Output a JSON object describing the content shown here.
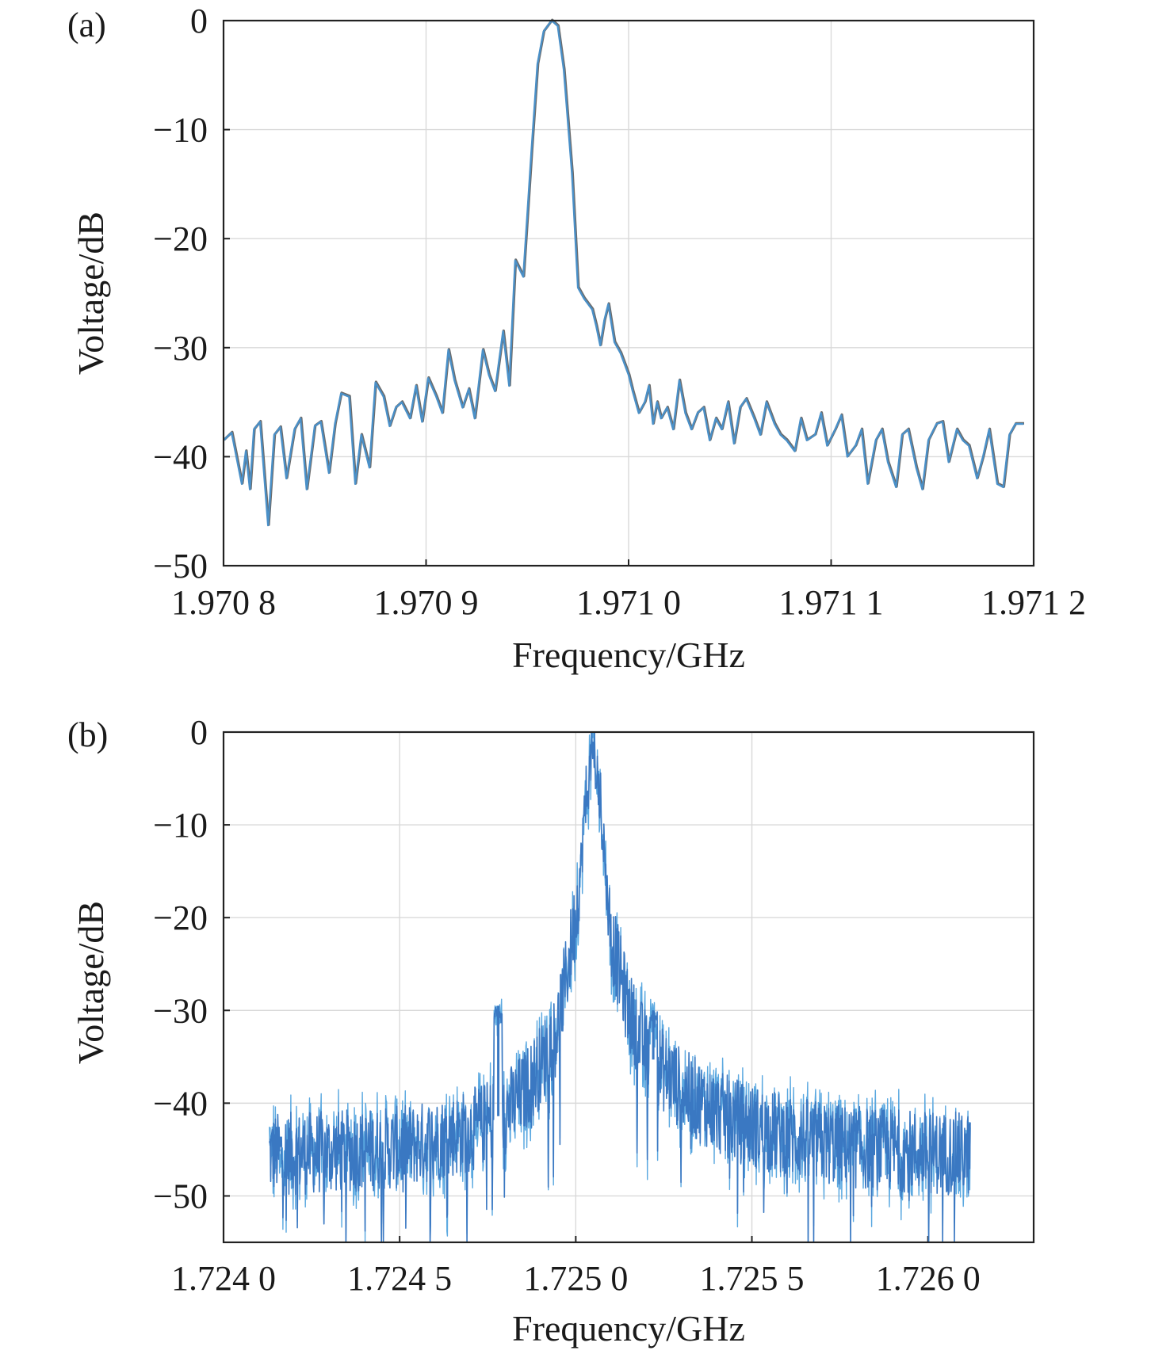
{
  "chart_data": [
    {
      "panel_label": "(a)",
      "type": "line",
      "xlabel": "Frequency/GHz",
      "ylabel": "Voltage/dB",
      "xlim": [
        1.9708,
        1.9712
      ],
      "ylim": [
        -50,
        0
      ],
      "xticks": [
        1.9708,
        1.9709,
        1.971,
        1.9711,
        1.9712
      ],
      "xtick_labels": [
        "1.970 8",
        "1.970 9",
        "1.971 0",
        "1.971 1",
        "1.971 2"
      ],
      "yticks": [
        0,
        -10,
        -20,
        -30,
        -40,
        -50
      ],
      "ytick_labels": [
        "0",
        "−10",
        "−20",
        "−30",
        "−40",
        "−50"
      ],
      "grid": true,
      "colors": {
        "line_main": "#4a90c8",
        "line_shadow": "#6b6b6b"
      },
      "series": [
        {
          "x": [
            1.9708,
            1.970804,
            1.970809,
            1.970811,
            1.970813,
            1.970815,
            1.970818,
            1.970822,
            1.970825,
            1.970828,
            1.970831,
            1.970835,
            1.970838,
            1.970841,
            1.970845,
            1.970848,
            1.970852,
            1.970855,
            1.970858,
            1.970862,
            1.970865,
            1.970868,
            1.970872,
            1.970875,
            1.970879,
            1.970882,
            1.970885,
            1.970888,
            1.970892,
            1.970895,
            1.970898,
            1.970901,
            1.970905,
            1.970908,
            1.970911,
            1.970914,
            1.970918,
            1.970921,
            1.970924,
            1.970928,
            1.970931,
            1.970934,
            1.970938,
            1.970941,
            1.970944,
            1.970948,
            1.970952,
            1.970955,
            1.970958,
            1.970962,
            1.970965,
            1.970968,
            1.970972,
            1.970975,
            1.970978,
            1.970982,
            1.970984,
            1.970986,
            1.970988,
            1.97099,
            1.970993,
            1.970996,
            1.970998,
            1.971,
            1.971002,
            1.971005,
            1.971008,
            1.97101,
            1.971012,
            1.971014,
            1.971016,
            1.971019,
            1.971022,
            1.971025,
            1.971028,
            1.971031,
            1.971034,
            1.971037,
            1.97104,
            1.971043,
            1.971046,
            1.971049,
            1.971052,
            1.971055,
            1.971058,
            1.971062,
            1.971065,
            1.971068,
            1.971072,
            1.971075,
            1.971078,
            1.971082,
            1.971085,
            1.971088,
            1.971092,
            1.971095,
            1.971098,
            1.971102,
            1.971105,
            1.971108,
            1.971112,
            1.971115,
            1.971118,
            1.971122,
            1.971125,
            1.971128,
            1.971132,
            1.971135,
            1.971138,
            1.971142,
            1.971145,
            1.971148,
            1.971152,
            1.971155,
            1.971158,
            1.971162,
            1.971165,
            1.971168,
            1.971172,
            1.971175,
            1.971178,
            1.971182,
            1.971185,
            1.971188,
            1.971191,
            1.971195
          ],
          "y": [
            -38.5,
            -37.8,
            -42.5,
            -39.5,
            -43.0,
            -37.5,
            -36.8,
            -46.3,
            -38.0,
            -37.3,
            -42.0,
            -37.5,
            -36.5,
            -43.0,
            -37.2,
            -36.8,
            -41.5,
            -37.0,
            -34.2,
            -34.5,
            -42.5,
            -38.0,
            -41.0,
            -33.2,
            -34.5,
            -37.2,
            -35.5,
            -35.0,
            -36.5,
            -33.5,
            -36.8,
            -32.8,
            -34.5,
            -36.0,
            -30.2,
            -33.0,
            -35.5,
            -33.8,
            -36.5,
            -30.2,
            -32.5,
            -34.0,
            -28.5,
            -33.5,
            -22.0,
            -23.5,
            -12.0,
            -4.0,
            -1.0,
            0.0,
            -0.5,
            -4.5,
            -14.0,
            -24.5,
            -25.5,
            -26.5,
            -28.0,
            -29.8,
            -27.5,
            -26.0,
            -29.5,
            -30.5,
            -31.5,
            -32.5,
            -34.0,
            -36.0,
            -35.0,
            -33.5,
            -37.0,
            -35.0,
            -36.5,
            -35.5,
            -37.5,
            -33.0,
            -36.0,
            -37.5,
            -36.0,
            -35.5,
            -38.5,
            -36.5,
            -37.5,
            -35.0,
            -38.8,
            -35.5,
            -34.7,
            -36.5,
            -38.0,
            -35.0,
            -37.0,
            -38.0,
            -38.5,
            -39.5,
            -36.5,
            -38.5,
            -38.0,
            -36.0,
            -39.0,
            -37.5,
            -36.2,
            -40.0,
            -39.0,
            -37.5,
            -42.5,
            -38.5,
            -37.5,
            -40.5,
            -42.8,
            -38.0,
            -37.5,
            -41.0,
            -43.0,
            -38.5,
            -37.0,
            -36.8,
            -40.5,
            -37.5,
            -38.5,
            -39.0,
            -42.0,
            -40.0,
            -37.5,
            -42.5,
            -42.8,
            -38.0,
            -37.0,
            -37.0
          ]
        }
      ]
    },
    {
      "panel_label": "(b)",
      "type": "line",
      "xlabel": "Frequency/GHz",
      "ylabel": "Voltage/dB",
      "xlim": [
        1.724,
        1.7263
      ],
      "ylim": [
        -55,
        0
      ],
      "xticks": [
        1.724,
        1.7245,
        1.725,
        1.7255,
        1.726
      ],
      "xtick_labels": [
        "1.724 0",
        "1.724 5",
        "1.725 0",
        "1.725 5",
        "1.726 0"
      ],
      "yticks": [
        0,
        -10,
        -20,
        -30,
        -40,
        -50
      ],
      "ytick_labels": [
        "0",
        "−10",
        "−20",
        "−30",
        "−40",
        "−50"
      ],
      "grid": true,
      "colors": {
        "line_main": "#3a78c2",
        "line_light": "#5aa8e0"
      },
      "series": [
        {
          "x_range": [
            1.72413,
            1.72612
          ],
          "envelope_x": [
            1.72413,
            1.7243,
            1.7245,
            1.7246,
            1.7247,
            1.7248,
            1.72485,
            1.7249,
            1.72495,
            1.725,
            1.72503,
            1.72505,
            1.72507,
            1.7251,
            1.72515,
            1.7252,
            1.7253,
            1.7254,
            1.7255,
            1.7256,
            1.7257,
            1.7258,
            1.7259,
            1.726,
            1.72612
          ],
          "envelope_y": [
            -45.5,
            -45.3,
            -44.8,
            -44.0,
            -43.0,
            -41.0,
            -39.0,
            -36.0,
            -31.5,
            -20.0,
            -8.0,
            -3.0,
            -9.0,
            -22.0,
            -30.0,
            -34.5,
            -38.5,
            -41.0,
            -42.5,
            -43.5,
            -44.3,
            -44.8,
            -45.0,
            -45.3,
            -45.5
          ],
          "noise_amplitude_db": 4.5,
          "spurs": [
            {
              "x": 1.72478,
              "y": -29.5
            },
            {
              "x": 1.72522,
              "y": -30.0
            }
          ]
        }
      ]
    }
  ]
}
